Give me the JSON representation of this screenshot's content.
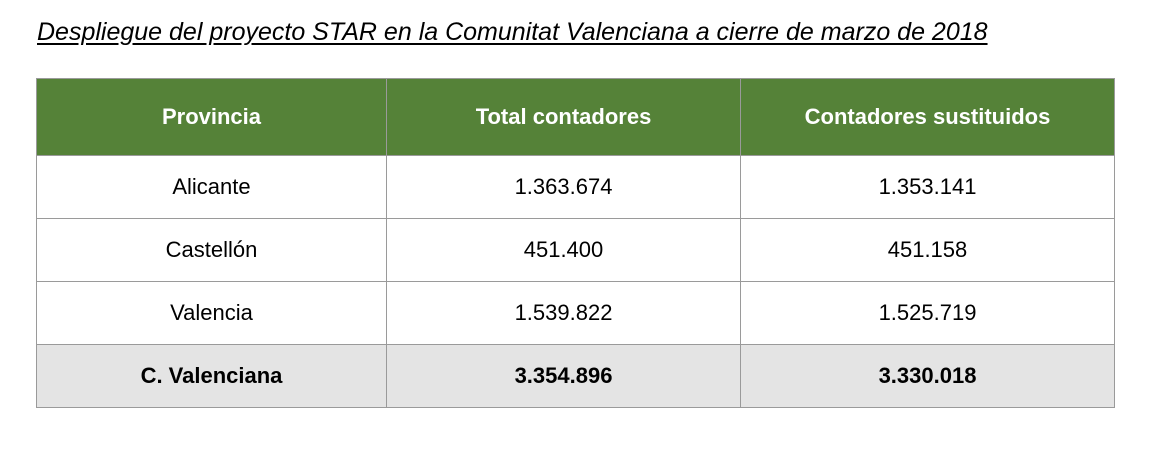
{
  "title": "Despliegue del proyecto STAR en la Comunitat Valenciana a cierre de marzo de 2018",
  "colors": {
    "header_bg": "#558238",
    "header_text": "#ffffff",
    "total_row_bg": "#e4e4e4",
    "border": "#9a9a9a"
  },
  "table": {
    "headers": [
      "Provincia",
      "Total contadores",
      "Contadores sustituidos"
    ],
    "rows": [
      [
        "Alicante",
        "1.363.674",
        "1.353.141"
      ],
      [
        "Castellón",
        "451.400",
        "451.158"
      ],
      [
        "Valencia",
        "1.539.822",
        "1.525.719"
      ]
    ],
    "total": [
      "C. Valenciana",
      "3.354.896",
      "3.330.018"
    ]
  }
}
